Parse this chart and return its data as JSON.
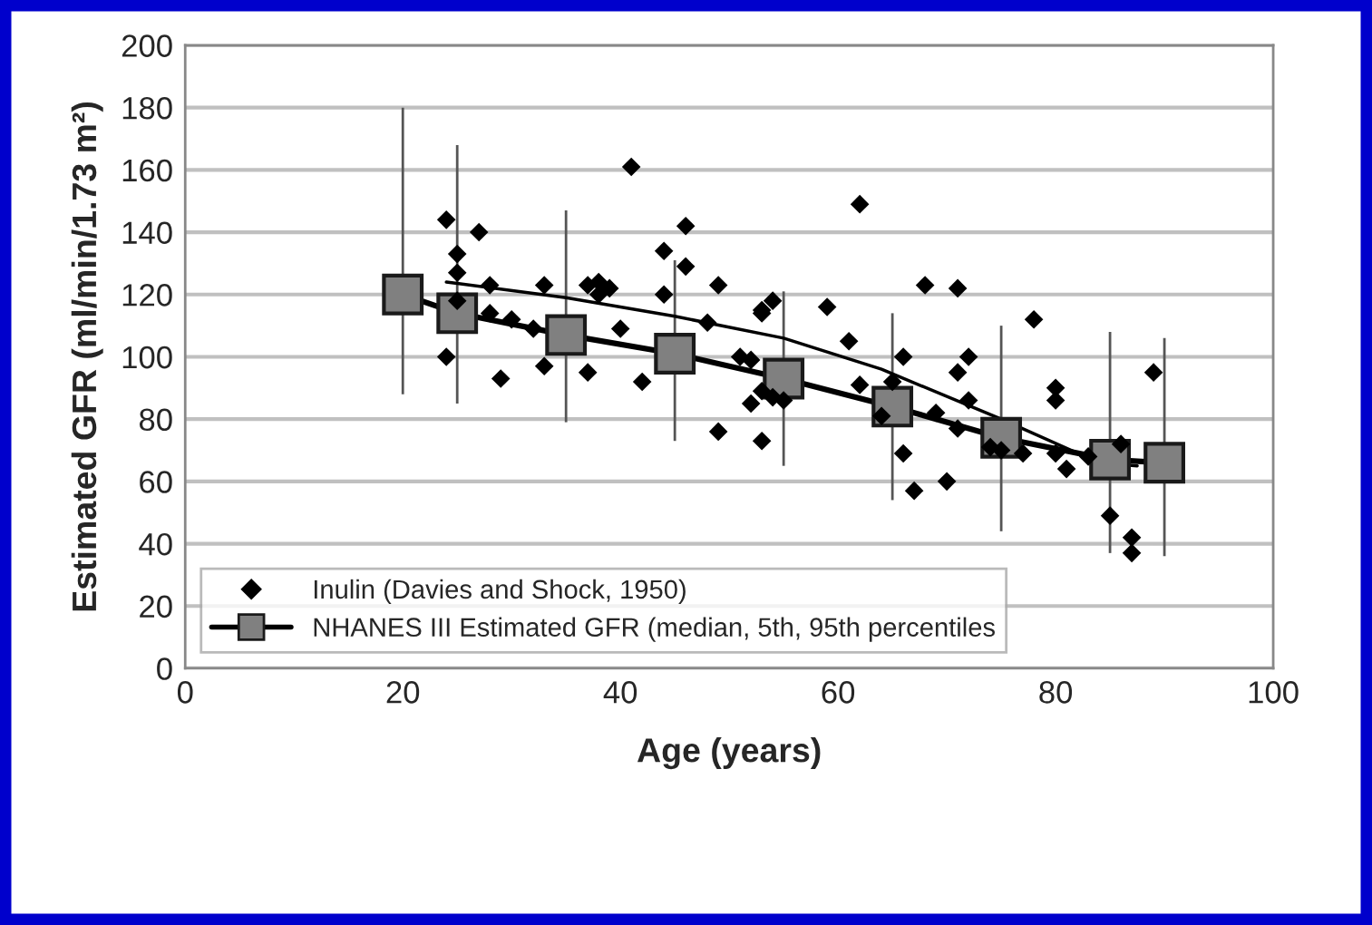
{
  "chart_data": {
    "type": "scatter",
    "xlabel": "Age (years)",
    "ylabel": "Estimated GFR (ml/min/1.73 m²)",
    "xlim": [
      0,
      100
    ],
    "xticks": [
      0,
      20,
      40,
      60,
      80,
      100
    ],
    "ylim": [
      0,
      200
    ],
    "yticks": [
      0,
      20,
      40,
      60,
      80,
      100,
      120,
      140,
      160,
      180,
      200
    ],
    "grid": "y",
    "legend": "bottom left",
    "series": [
      {
        "name": "Inulin (Davies and Shock, 1950)",
        "color": "#000000",
        "marker": "diamond",
        "x": [
          24,
          25,
          25,
          27,
          28,
          28,
          25,
          24,
          30,
          29,
          32,
          33,
          33,
          37,
          38,
          38,
          39,
          37,
          41,
          40,
          42,
          44,
          44,
          46,
          46,
          49,
          48,
          49,
          51,
          52,
          53,
          53,
          54,
          52,
          53,
          53,
          54,
          55,
          59,
          61,
          62,
          62,
          64,
          65,
          66,
          66,
          67,
          68,
          69,
          70,
          71,
          71,
          72,
          72,
          71,
          74,
          75,
          77,
          78,
          80,
          80,
          81,
          80,
          86,
          85,
          87,
          87,
          89,
          83
        ],
        "values": [
          144,
          133,
          127,
          140,
          123,
          114,
          118,
          100,
          112,
          93,
          109,
          123,
          97,
          123,
          124,
          120,
          122,
          95,
          161,
          109,
          92,
          134,
          120,
          142,
          129,
          123,
          111,
          76,
          100,
          99,
          114,
          115,
          118,
          85,
          73,
          89,
          87,
          86,
          116,
          105,
          149,
          91,
          81,
          92,
          100,
          69,
          57,
          123,
          82,
          60,
          122,
          95,
          100,
          86,
          77,
          71,
          70,
          69,
          112,
          90,
          86,
          64,
          69,
          72,
          49,
          42,
          37,
          95,
          68
        ]
      },
      {
        "type": "line",
        "color": "#000000",
        "marker": "none",
        "x": [
          24,
          35,
          45,
          55,
          64,
          75,
          84,
          87.5
        ],
        "values": [
          124,
          119,
          113,
          106,
          96,
          80,
          66,
          65
        ]
      },
      {
        "type": "line",
        "name": "NHANES III Estimated GFR (median, 5th, 95th percentiles",
        "color": "#808080",
        "marker": "square",
        "x": [
          20,
          25,
          35,
          45,
          55,
          65,
          75,
          85,
          90
        ],
        "values": [
          120,
          114,
          107,
          101,
          93,
          84,
          74,
          67,
          66
        ],
        "errors": [
          [
            88,
            180
          ],
          [
            85,
            168
          ],
          [
            79,
            147
          ],
          [
            73,
            131
          ],
          [
            65,
            121
          ],
          [
            54,
            114
          ],
          [
            44,
            110
          ],
          [
            37,
            108
          ],
          [
            36,
            106
          ]
        ]
      }
    ]
  }
}
